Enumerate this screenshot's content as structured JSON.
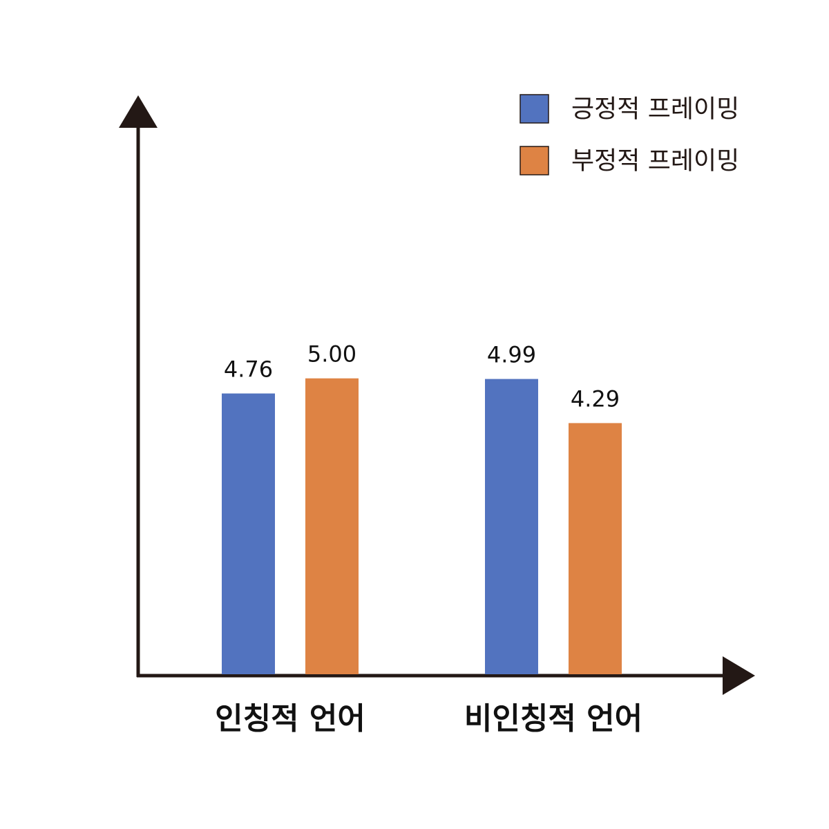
{
  "chart_data": {
    "type": "bar",
    "categories": [
      "인칭적 언어",
      "비인칭적 언어"
    ],
    "series": [
      {
        "name": "긍정적 프레이밍",
        "color": "#5273bf",
        "values": [
          4.76,
          4.99
        ],
        "labels": [
          "4.76",
          "4.99"
        ]
      },
      {
        "name": "부정적 프레이밍",
        "color": "#de8344",
        "values": [
          5.0,
          4.29
        ],
        "labels": [
          "5.00",
          "4.29"
        ]
      }
    ],
    "title": "",
    "xlabel": "",
    "ylabel": "",
    "axis_color": "#231815",
    "legend_position": "top-right",
    "grid": false
  }
}
